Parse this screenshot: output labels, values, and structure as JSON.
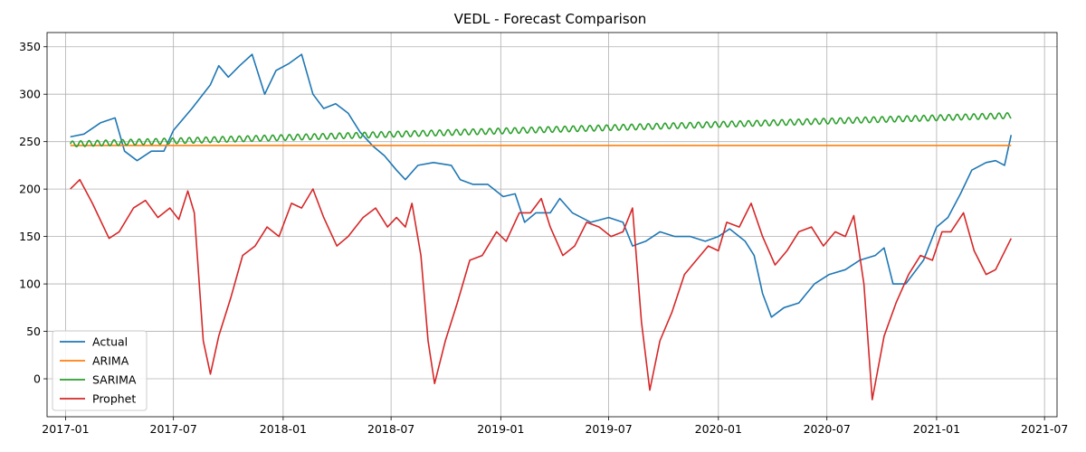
{
  "chart_data": {
    "type": "line",
    "title": "VEDL - Forecast Comparison",
    "xlabel": "",
    "ylabel": "",
    "xlim": [
      "2016-12-01",
      "2021-07-22"
    ],
    "ylim": [
      -40,
      365
    ],
    "grid": true,
    "legend_position": "lower-left",
    "x_ticks": [
      "2017-01",
      "2017-07",
      "2018-01",
      "2018-07",
      "2019-01",
      "2019-07",
      "2020-01",
      "2020-07",
      "2021-01",
      "2021-07"
    ],
    "y_ticks": [
      0,
      50,
      100,
      150,
      200,
      250,
      300,
      350
    ],
    "series": [
      {
        "name": "Actual",
        "color": "#1f77b4",
        "points": [
          [
            "2017-01-09",
            255
          ],
          [
            "2017-02-01",
            258
          ],
          [
            "2017-03-01",
            270
          ],
          [
            "2017-03-25",
            275
          ],
          [
            "2017-04-10",
            240
          ],
          [
            "2017-05-01",
            230
          ],
          [
            "2017-05-25",
            240
          ],
          [
            "2017-06-15",
            240
          ],
          [
            "2017-07-01",
            262
          ],
          [
            "2017-08-01",
            285
          ],
          [
            "2017-09-01",
            310
          ],
          [
            "2017-09-15",
            330
          ],
          [
            "2017-10-01",
            318
          ],
          [
            "2017-10-20",
            330
          ],
          [
            "2017-11-10",
            342
          ],
          [
            "2017-12-01",
            300
          ],
          [
            "2017-12-20",
            325
          ],
          [
            "2018-01-10",
            332
          ],
          [
            "2018-02-01",
            342
          ],
          [
            "2018-02-20",
            300
          ],
          [
            "2018-03-10",
            285
          ],
          [
            "2018-03-30",
            290
          ],
          [
            "2018-04-20",
            280
          ],
          [
            "2018-05-10",
            260
          ],
          [
            "2018-06-01",
            245
          ],
          [
            "2018-06-20",
            235
          ],
          [
            "2018-07-10",
            220
          ],
          [
            "2018-07-25",
            210
          ],
          [
            "2018-08-15",
            225
          ],
          [
            "2018-09-10",
            228
          ],
          [
            "2018-10-10",
            225
          ],
          [
            "2018-10-25",
            210
          ],
          [
            "2018-11-15",
            205
          ],
          [
            "2018-12-10",
            205
          ],
          [
            "2019-01-05",
            192
          ],
          [
            "2019-01-25",
            195
          ],
          [
            "2019-02-10",
            165
          ],
          [
            "2019-03-01",
            175
          ],
          [
            "2019-03-25",
            175
          ],
          [
            "2019-04-10",
            190
          ],
          [
            "2019-05-01",
            175
          ],
          [
            "2019-06-01",
            165
          ],
          [
            "2019-07-01",
            170
          ],
          [
            "2019-07-25",
            165
          ],
          [
            "2019-08-10",
            140
          ],
          [
            "2019-09-01",
            145
          ],
          [
            "2019-09-25",
            155
          ],
          [
            "2019-10-20",
            150
          ],
          [
            "2019-11-15",
            150
          ],
          [
            "2019-12-10",
            145
          ],
          [
            "2020-01-01",
            150
          ],
          [
            "2020-01-20",
            158
          ],
          [
            "2020-02-15",
            145
          ],
          [
            "2020-03-01",
            130
          ],
          [
            "2020-03-15",
            90
          ],
          [
            "2020-03-30",
            65
          ],
          [
            "2020-04-20",
            75
          ],
          [
            "2020-05-15",
            80
          ],
          [
            "2020-06-10",
            100
          ],
          [
            "2020-07-05",
            110
          ],
          [
            "2020-08-01",
            115
          ],
          [
            "2020-08-25",
            125
          ],
          [
            "2020-09-20",
            130
          ],
          [
            "2020-10-05",
            138
          ],
          [
            "2020-10-20",
            100
          ],
          [
            "2020-11-10",
            100
          ],
          [
            "2020-12-10",
            125
          ],
          [
            "2021-01-01",
            160
          ],
          [
            "2021-01-20",
            170
          ],
          [
            "2021-02-10",
            195
          ],
          [
            "2021-03-01",
            220
          ],
          [
            "2021-03-25",
            228
          ],
          [
            "2021-04-10",
            230
          ],
          [
            "2021-04-25",
            225
          ],
          [
            "2021-05-06",
            257
          ]
        ]
      },
      {
        "name": "ARIMA",
        "color": "#ff7f0e",
        "points": [
          [
            "2017-01-09",
            246
          ],
          [
            "2021-05-06",
            246
          ]
        ]
      },
      {
        "name": "SARIMA",
        "color": "#2ca02c",
        "trend": {
          "start": [
            "2017-01-09",
            246
          ],
          "end": [
            "2021-05-06",
            276
          ],
          "amplitude": 6,
          "period_days": 14
        }
      },
      {
        "name": "Prophet",
        "color": "#d62728",
        "points": [
          [
            "2017-01-09",
            200
          ],
          [
            "2017-01-25",
            210
          ],
          [
            "2017-02-15",
            185
          ],
          [
            "2017-03-15",
            148
          ],
          [
            "2017-04-01",
            155
          ],
          [
            "2017-04-25",
            180
          ],
          [
            "2017-05-15",
            188
          ],
          [
            "2017-06-05",
            170
          ],
          [
            "2017-06-25",
            180
          ],
          [
            "2017-07-10",
            168
          ],
          [
            "2017-07-25",
            198
          ],
          [
            "2017-08-05",
            175
          ],
          [
            "2017-08-20",
            40
          ],
          [
            "2017-09-01",
            5
          ],
          [
            "2017-09-15",
            45
          ],
          [
            "2017-10-05",
            85
          ],
          [
            "2017-10-25",
            130
          ],
          [
            "2017-11-15",
            140
          ],
          [
            "2017-12-05",
            160
          ],
          [
            "2017-12-25",
            150
          ],
          [
            "2018-01-15",
            185
          ],
          [
            "2018-02-01",
            180
          ],
          [
            "2018-02-20",
            200
          ],
          [
            "2018-03-10",
            170
          ],
          [
            "2018-04-01",
            140
          ],
          [
            "2018-04-20",
            150
          ],
          [
            "2018-05-15",
            170
          ],
          [
            "2018-06-05",
            180
          ],
          [
            "2018-06-25",
            160
          ],
          [
            "2018-07-10",
            170
          ],
          [
            "2018-07-25",
            160
          ],
          [
            "2018-08-05",
            185
          ],
          [
            "2018-08-20",
            130
          ],
          [
            "2018-09-01",
            40
          ],
          [
            "2018-09-12",
            -5
          ],
          [
            "2018-09-30",
            40
          ],
          [
            "2018-10-20",
            80
          ],
          [
            "2018-11-10",
            125
          ],
          [
            "2018-12-01",
            130
          ],
          [
            "2018-12-25",
            155
          ],
          [
            "2019-01-10",
            145
          ],
          [
            "2019-02-01",
            175
          ],
          [
            "2019-02-20",
            175
          ],
          [
            "2019-03-10",
            190
          ],
          [
            "2019-03-25",
            160
          ],
          [
            "2019-04-15",
            130
          ],
          [
            "2019-05-05",
            140
          ],
          [
            "2019-05-25",
            165
          ],
          [
            "2019-06-15",
            160
          ],
          [
            "2019-07-05",
            150
          ],
          [
            "2019-07-25",
            155
          ],
          [
            "2019-08-10",
            180
          ],
          [
            "2019-08-25",
            60
          ],
          [
            "2019-09-08",
            -12
          ],
          [
            "2019-09-25",
            40
          ],
          [
            "2019-10-15",
            70
          ],
          [
            "2019-11-05",
            110
          ],
          [
            "2019-11-25",
            125
          ],
          [
            "2019-12-15",
            140
          ],
          [
            "2020-01-01",
            135
          ],
          [
            "2020-01-15",
            165
          ],
          [
            "2020-02-05",
            160
          ],
          [
            "2020-02-25",
            185
          ],
          [
            "2020-03-15",
            150
          ],
          [
            "2020-04-05",
            120
          ],
          [
            "2020-04-25",
            135
          ],
          [
            "2020-05-15",
            155
          ],
          [
            "2020-06-05",
            160
          ],
          [
            "2020-06-25",
            140
          ],
          [
            "2020-07-15",
            155
          ],
          [
            "2020-08-01",
            150
          ],
          [
            "2020-08-15",
            172
          ],
          [
            "2020-09-01",
            100
          ],
          [
            "2020-09-15",
            -22
          ],
          [
            "2020-10-05",
            45
          ],
          [
            "2020-10-25",
            80
          ],
          [
            "2020-11-15",
            110
          ],
          [
            "2020-12-05",
            130
          ],
          [
            "2020-12-25",
            125
          ],
          [
            "2021-01-10",
            155
          ],
          [
            "2021-01-25",
            155
          ],
          [
            "2021-02-15",
            175
          ],
          [
            "2021-03-05",
            135
          ],
          [
            "2021-03-25",
            110
          ],
          [
            "2021-04-10",
            115
          ],
          [
            "2021-05-06",
            148
          ]
        ]
      }
    ]
  }
}
